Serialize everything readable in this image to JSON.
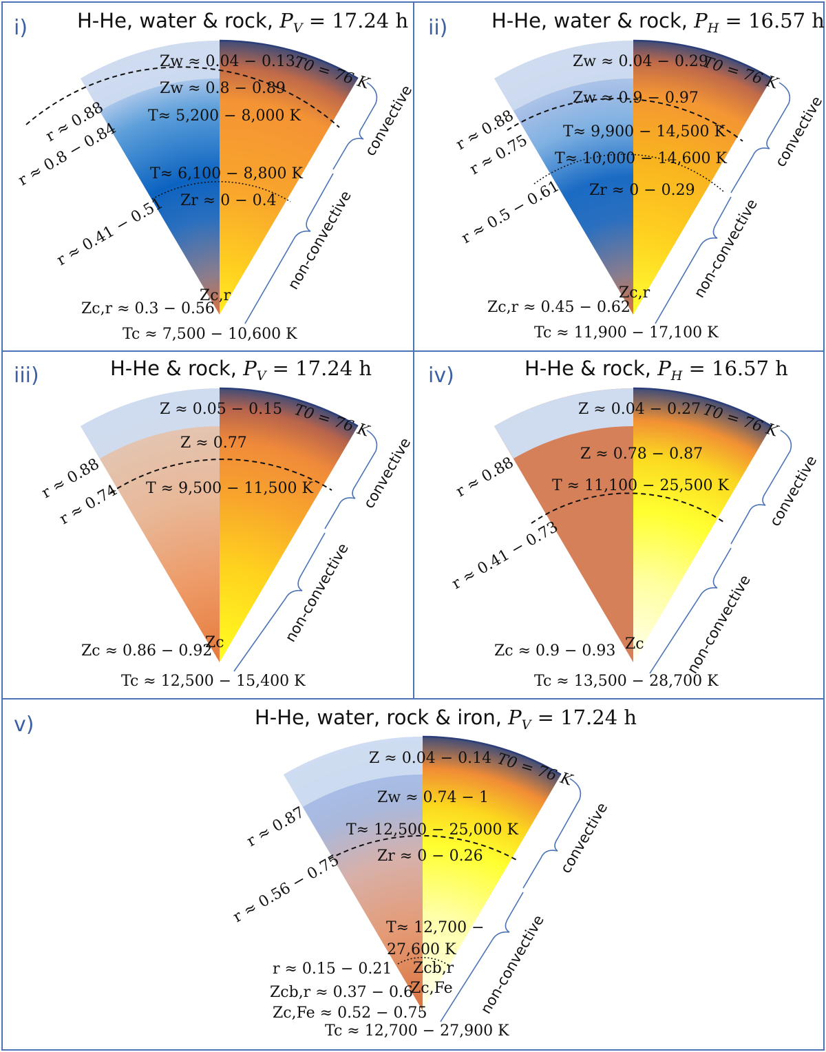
{
  "panels": [
    {
      "id": "i)",
      "title": "H-He, water & rock, ",
      "period_symbol": "P",
      "period_sub": "V",
      "period_value": " = 17.24 h",
      "z_outer": "Zw ≈ 0.04 − 0.13",
      "t0": "T0 = 76 K",
      "z_upper": "Zw ≈ 0.8 − 0.89",
      "t_upper": "T≈ 5,200 − 8,000 K",
      "t_lower": "T≈ 6,100 − 8,800 K",
      "z_lower": "Zr ≈ 0 − 0.4",
      "center_label": "Zc,r",
      "r_outer": "r ≈ 0.88",
      "r_mid": "r ≈ 0.8 − 0.84",
      "r_inner": "r ≈ 0.41 − 0.51",
      "z_center": "Zc,r ≈ 0.3 − 0.56",
      "t_center": "Tc ≈ 7,500 − 10,600 K",
      "convective": "convective",
      "non_convective": "non-convective"
    },
    {
      "id": "ii)",
      "title": "H-He, water & rock, ",
      "period_symbol": "P",
      "period_sub": "H",
      "period_value": " = 16.57 h",
      "z_outer": "Zw ≈ 0.04 − 0.29",
      "t0": "T0 = 76 K",
      "z_upper": "Zw ≈ 0.9 − 0.97",
      "t_upper": "T≈ 9,900 − 14,500 K",
      "t_lower": "T≈ 10,000 − 14,600 K",
      "z_lower": "Zr ≈ 0 − 0.29",
      "center_label": "Zc,r",
      "r_outer": "r ≈ 0.88",
      "r_mid": "r ≈ 0.75",
      "r_inner": "r ≈ 0.5 − 0.61",
      "z_center": "Zc,r ≈ 0.45 − 0.62",
      "t_center": "Tc ≈ 11,900 − 17,100 K",
      "convective": "convective",
      "non_convective": "non-convective"
    },
    {
      "id": "iii)",
      "title": "H-He & rock, ",
      "period_symbol": "P",
      "period_sub": "V",
      "period_value": " = 17.24 h",
      "z_outer": "Z ≈ 0.05 − 0.15",
      "t0": "T0 = 76 K",
      "z_upper": "Z ≈ 0.77",
      "t_upper": "T ≈ 9,500 − 11,500 K",
      "center_label": "Zc",
      "r_outer": "r ≈ 0.88",
      "r_mid": "r ≈ 0.74",
      "z_center": "Zc ≈ 0.86 − 0.92",
      "t_center": "Tc ≈ 12,500 − 15,400 K",
      "convective": "convective",
      "non_convective": "non-convective"
    },
    {
      "id": "iv)",
      "title": "H-He & rock, ",
      "period_symbol": "P",
      "period_sub": "H",
      "period_value": " = 16.57 h",
      "z_outer": "Z ≈ 0.04 − 0.27",
      "t0": "T0 = 76 K",
      "z_upper": "Z ≈ 0.78 − 0.87",
      "t_upper": "T ≈ 11,100 − 25,500 K",
      "center_label": "Zc",
      "r_outer": "r ≈ 0.88",
      "r_mid": "r ≈ 0.41 − 0.73",
      "z_center": "Zc ≈ 0.9 − 0.93",
      "t_center": "Tc ≈ 13,500 − 28,700 K",
      "convective": "convective",
      "non_convective": "non-convective"
    },
    {
      "id": "v)",
      "title": "H-He, water, rock & iron, ",
      "period_symbol": "P",
      "period_sub": "V",
      "period_value": " = 17.24 h",
      "z_outer": "Z ≈ 0.04 − 0.14",
      "t0": "T0 = 76 K",
      "z_upper": "Zw ≈ 0.74 − 1",
      "t_upper": "T≈ 12,500 − 25,000 K",
      "z_lower": "Zr ≈ 0 − 0.26",
      "t_lower_a": "T≈ 12,700 −",
      "t_lower_b": "27,600 K",
      "center_label_a": "Zcb,r",
      "center_label_b": "Zc,Fe",
      "r_outer": "r ≈ 0.87",
      "r_mid": "r ≈ 0.56 − 0.75",
      "r_inner": "r ≈ 0.15 − 0.21",
      "z_cb": "Zcb,r ≈ 0.37 − 0.6",
      "z_fe": "Zc,Fe ≈ 0.52 − 0.75",
      "t_center": "Tc ≈ 12,700 − 27,900 K",
      "convective": "convective",
      "non_convective": "non-convective"
    }
  ],
  "colors": {
    "border": "#4a72b5",
    "label_blue": "#3a5fa3",
    "envelope_light": "#c9d6ee",
    "water_blue": "#1566c0",
    "rock_tan": "#e7b99a",
    "rock_orange": "#ea8a4a",
    "hot_orange": "#f79a2c",
    "hot_yellow": "#ffee20",
    "dark_top": "#3a4a7a"
  }
}
